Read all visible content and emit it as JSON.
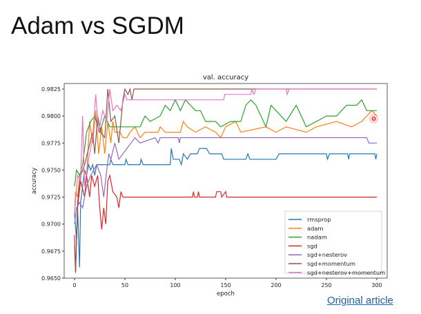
{
  "slide": {
    "title": "Adam vs SGDM",
    "link_label": "Original article"
  },
  "chart_data": {
    "type": "line",
    "title": "val. accuracy",
    "xlabel": "epoch",
    "ylabel": "accuracy",
    "xlim": [
      -7,
      307
    ],
    "ylim": [
      0.965,
      0.9828
    ],
    "xticks": [
      0,
      50,
      100,
      150,
      200,
      250,
      300
    ],
    "yticks": [
      "0.9650",
      "0.9675",
      "0.9700",
      "0.9725",
      "0.9750",
      "0.9775",
      "0.9800",
      "0.9825"
    ],
    "grid": false,
    "legend_position": "lower-right",
    "series": [
      {
        "name": "rmsprop",
        "color": "#1f77b4",
        "points": [
          [
            0,
            0.971
          ],
          [
            2,
            0.9685
          ],
          [
            3,
            0.9715
          ],
          [
            5,
            0.966
          ],
          [
            6,
            0.972
          ],
          [
            8,
            0.9735
          ],
          [
            10,
            0.975
          ],
          [
            12,
            0.9745
          ],
          [
            14,
            0.9755
          ],
          [
            16,
            0.975
          ],
          [
            18,
            0.9755
          ],
          [
            20,
            0.9745
          ],
          [
            22,
            0.9755
          ],
          [
            35,
            0.9755
          ],
          [
            36,
            0.976
          ],
          [
            38,
            0.9755
          ],
          [
            50,
            0.9755
          ],
          [
            51,
            0.976
          ],
          [
            53,
            0.9755
          ],
          [
            65,
            0.9755
          ],
          [
            66,
            0.976
          ],
          [
            68,
            0.9755
          ],
          [
            95,
            0.9755
          ],
          [
            96,
            0.977
          ],
          [
            98,
            0.976
          ],
          [
            104,
            0.976
          ],
          [
            106,
            0.9755
          ],
          [
            108,
            0.9765
          ],
          [
            112,
            0.976
          ],
          [
            115,
            0.9765
          ],
          [
            122,
            0.9765
          ],
          [
            124,
            0.977
          ],
          [
            131,
            0.977
          ],
          [
            134,
            0.9765
          ],
          [
            146,
            0.9765
          ],
          [
            148,
            0.976
          ],
          [
            170,
            0.976
          ],
          [
            172,
            0.9765
          ],
          [
            174,
            0.976
          ],
          [
            200,
            0.976
          ],
          [
            203,
            0.9765
          ],
          [
            250,
            0.9765
          ],
          [
            251,
            0.976
          ],
          [
            253,
            0.9765
          ],
          [
            271,
            0.9765
          ],
          [
            272,
            0.976
          ],
          [
            273,
            0.9765
          ],
          [
            298,
            0.9765
          ],
          [
            299,
            0.976
          ],
          [
            300,
            0.9765
          ]
        ]
      },
      {
        "name": "adam",
        "color": "#ff7f0e",
        "points": [
          [
            0,
            0.971
          ],
          [
            1,
            0.973
          ],
          [
            3,
            0.9725
          ],
          [
            5,
            0.9745
          ],
          [
            8,
            0.975
          ],
          [
            12,
            0.9745
          ],
          [
            15,
            0.9795
          ],
          [
            18,
            0.9775
          ],
          [
            21,
            0.9805
          ],
          [
            24,
            0.9765
          ],
          [
            27,
            0.979
          ],
          [
            30,
            0.9765
          ],
          [
            33,
            0.9795
          ],
          [
            36,
            0.9775
          ],
          [
            38,
            0.9795
          ],
          [
            40,
            0.9785
          ],
          [
            45,
            0.9785
          ],
          [
            48,
            0.978
          ],
          [
            52,
            0.978
          ],
          [
            55,
            0.9785
          ],
          [
            60,
            0.979
          ],
          [
            65,
            0.978
          ],
          [
            70,
            0.9785
          ],
          [
            83,
            0.9785
          ],
          [
            85,
            0.979
          ],
          [
            90,
            0.9785
          ],
          [
            105,
            0.9785
          ],
          [
            108,
            0.9795
          ],
          [
            112,
            0.979
          ],
          [
            120,
            0.9785
          ],
          [
            130,
            0.979
          ],
          [
            140,
            0.9785
          ],
          [
            145,
            0.978
          ],
          [
            150,
            0.979
          ],
          [
            160,
            0.9795
          ],
          [
            165,
            0.9785
          ],
          [
            190,
            0.979
          ],
          [
            200,
            0.9785
          ],
          [
            210,
            0.979
          ],
          [
            230,
            0.9785
          ],
          [
            240,
            0.979
          ],
          [
            260,
            0.9795
          ],
          [
            275,
            0.979
          ],
          [
            285,
            0.9795
          ],
          [
            290,
            0.98
          ],
          [
            295,
            0.9805
          ],
          [
            300,
            0.98
          ]
        ]
      },
      {
        "name": "nadam",
        "color": "#2ca02c",
        "points": [
          [
            0,
            0.9735
          ],
          [
            2,
            0.975
          ],
          [
            5,
            0.9745
          ],
          [
            8,
            0.9755
          ],
          [
            12,
            0.9785
          ],
          [
            16,
            0.9795
          ],
          [
            20,
            0.98
          ],
          [
            25,
            0.9785
          ],
          [
            30,
            0.98
          ],
          [
            35,
            0.979
          ],
          [
            65,
            0.979
          ],
          [
            70,
            0.98
          ],
          [
            75,
            0.9795
          ],
          [
            85,
            0.98
          ],
          [
            90,
            0.981
          ],
          [
            95,
            0.9805
          ],
          [
            100,
            0.9815
          ],
          [
            105,
            0.9805
          ],
          [
            110,
            0.9815
          ],
          [
            120,
            0.9805
          ],
          [
            125,
            0.9805
          ],
          [
            130,
            0.9795
          ],
          [
            140,
            0.9795
          ],
          [
            145,
            0.979
          ],
          [
            155,
            0.9795
          ],
          [
            165,
            0.9795
          ],
          [
            170,
            0.981
          ],
          [
            175,
            0.9815
          ],
          [
            180,
            0.981
          ],
          [
            190,
            0.979
          ],
          [
            195,
            0.981
          ],
          [
            200,
            0.9805
          ],
          [
            210,
            0.9795
          ],
          [
            220,
            0.981
          ],
          [
            230,
            0.979
          ],
          [
            240,
            0.9795
          ],
          [
            250,
            0.98
          ],
          [
            260,
            0.98
          ],
          [
            270,
            0.981
          ],
          [
            280,
            0.981
          ],
          [
            285,
            0.9815
          ],
          [
            290,
            0.9805
          ],
          [
            300,
            0.9805
          ]
        ]
      },
      {
        "name": "sgd",
        "color": "#d62728",
        "points": [
          [
            0,
            0.969
          ],
          [
            1,
            0.9655
          ],
          [
            3,
            0.9715
          ],
          [
            6,
            0.974
          ],
          [
            10,
            0.9725
          ],
          [
            12,
            0.9745
          ],
          [
            15,
            0.9725
          ],
          [
            17,
            0.9745
          ],
          [
            20,
            0.9735
          ],
          [
            23,
            0.9745
          ],
          [
            25,
            0.9715
          ],
          [
            27,
            0.9695
          ],
          [
            29,
            0.9715
          ],
          [
            31,
            0.97
          ],
          [
            33,
            0.974
          ],
          [
            35,
            0.9745
          ],
          [
            38,
            0.973
          ],
          [
            42,
            0.9725
          ],
          [
            44,
            0.9715
          ],
          [
            46,
            0.973
          ],
          [
            48,
            0.9725
          ],
          [
            117,
            0.9725
          ],
          [
            118,
            0.973
          ],
          [
            119,
            0.9725
          ],
          [
            122,
            0.9725
          ],
          [
            123,
            0.973
          ],
          [
            124,
            0.9725
          ],
          [
            140,
            0.9725
          ],
          [
            141,
            0.973
          ],
          [
            145,
            0.973
          ],
          [
            146,
            0.9725
          ],
          [
            150,
            0.973
          ],
          [
            151,
            0.9725
          ],
          [
            300,
            0.9725
          ]
        ]
      },
      {
        "name": "sgd+nesterov",
        "color": "#9467bd",
        "points": [
          [
            0,
            0.97
          ],
          [
            2,
            0.9715
          ],
          [
            5,
            0.972
          ],
          [
            8,
            0.9715
          ],
          [
            12,
            0.9735
          ],
          [
            16,
            0.9745
          ],
          [
            22,
            0.9755
          ],
          [
            26,
            0.9745
          ],
          [
            29,
            0.9725
          ],
          [
            32,
            0.975
          ],
          [
            34,
            0.9765
          ],
          [
            36,
            0.976
          ],
          [
            40,
            0.9775
          ],
          [
            44,
            0.976
          ],
          [
            48,
            0.9765
          ],
          [
            52,
            0.977
          ],
          [
            56,
            0.9775
          ],
          [
            60,
            0.978
          ],
          [
            65,
            0.9775
          ],
          [
            80,
            0.978
          ],
          [
            83,
            0.9775
          ],
          [
            85,
            0.978
          ],
          [
            103,
            0.978
          ],
          [
            104,
            0.9775
          ],
          [
            105,
            0.978
          ],
          [
            290,
            0.978
          ],
          [
            292,
            0.9775
          ],
          [
            300,
            0.9775
          ]
        ]
      },
      {
        "name": "sgd+momentum",
        "color": "#8c564b",
        "points": [
          [
            0,
            0.968
          ],
          [
            1,
            0.9655
          ],
          [
            3,
            0.972
          ],
          [
            6,
            0.9745
          ],
          [
            10,
            0.9755
          ],
          [
            14,
            0.977
          ],
          [
            18,
            0.9785
          ],
          [
            20,
            0.9765
          ],
          [
            23,
            0.98
          ],
          [
            26,
            0.9785
          ],
          [
            30,
            0.978
          ],
          [
            33,
            0.9825
          ],
          [
            36,
            0.9795
          ],
          [
            40,
            0.98
          ],
          [
            44,
            0.9775
          ],
          [
            48,
            0.9815
          ],
          [
            50,
            0.9825
          ],
          [
            53,
            0.982
          ],
          [
            55,
            0.9825
          ],
          [
            57,
            0.9815
          ],
          [
            59,
            0.9825
          ],
          [
            300,
            0.9825
          ]
        ]
      },
      {
        "name": "sgd+nesterov+momentum",
        "color": "#e377c2",
        "points": [
          [
            0,
            0.971
          ],
          [
            3,
            0.9745
          ],
          [
            6,
            0.974
          ],
          [
            8,
            0.98
          ],
          [
            10,
            0.9735
          ],
          [
            14,
            0.976
          ],
          [
            18,
            0.978
          ],
          [
            21,
            0.982
          ],
          [
            24,
            0.9785
          ],
          [
            28,
            0.9805
          ],
          [
            32,
            0.9795
          ],
          [
            35,
            0.9825
          ],
          [
            38,
            0.9805
          ],
          [
            42,
            0.981
          ],
          [
            46,
            0.9805
          ],
          [
            50,
            0.982
          ],
          [
            52,
            0.9815
          ],
          [
            148,
            0.9815
          ],
          [
            149,
            0.982
          ],
          [
            175,
            0.982
          ],
          [
            176,
            0.9825
          ],
          [
            178,
            0.982
          ],
          [
            180,
            0.9825
          ],
          [
            210,
            0.9825
          ],
          [
            211,
            0.982
          ],
          [
            213,
            0.9825
          ],
          [
            300,
            0.9825
          ]
        ]
      }
    ]
  },
  "cursor_marker": {
    "color": "#e02020"
  }
}
